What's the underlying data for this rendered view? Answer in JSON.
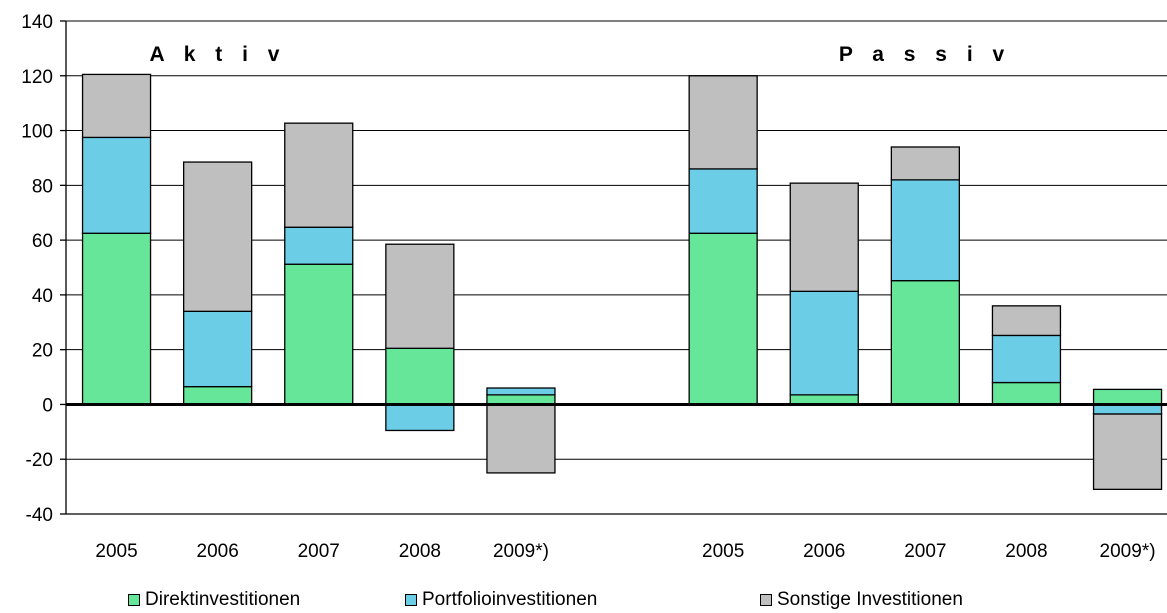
{
  "chart_data": {
    "type": "bar",
    "stacked": true,
    "groups": [
      {
        "title": "Aktiv",
        "categories": [
          "2005",
          "2006",
          "2007",
          "2008",
          "2009*)"
        ]
      },
      {
        "title": "Passiv",
        "categories": [
          "2005",
          "2006",
          "2007",
          "2008",
          "2009*)"
        ]
      }
    ],
    "series": [
      {
        "name": "Direktinvestitionen",
        "color": "#66e699",
        "values": [
          62.5,
          6.5,
          51.2,
          20.5,
          3.5,
          62.5,
          3.5,
          45.2,
          8.0,
          5.5
        ]
      },
      {
        "name": "Portfolioinvestitionen",
        "color": "#6bcde6",
        "values": [
          35.0,
          27.5,
          13.5,
          -9.5,
          2.5,
          23.5,
          37.8,
          36.8,
          17.2,
          -3.5
        ]
      },
      {
        "name": "Sonstige Investitionen",
        "color": "#bfbfbf",
        "values": [
          23.0,
          54.5,
          38.0,
          38.0,
          -25.0,
          34.0,
          39.5,
          12.0,
          10.8,
          -27.5
        ]
      }
    ],
    "ylim": [
      -40,
      140
    ],
    "yticks": [
      -40,
      -20,
      0,
      20,
      40,
      60,
      80,
      100,
      120,
      140
    ],
    "grid": true,
    "legend_position": "bottom"
  }
}
